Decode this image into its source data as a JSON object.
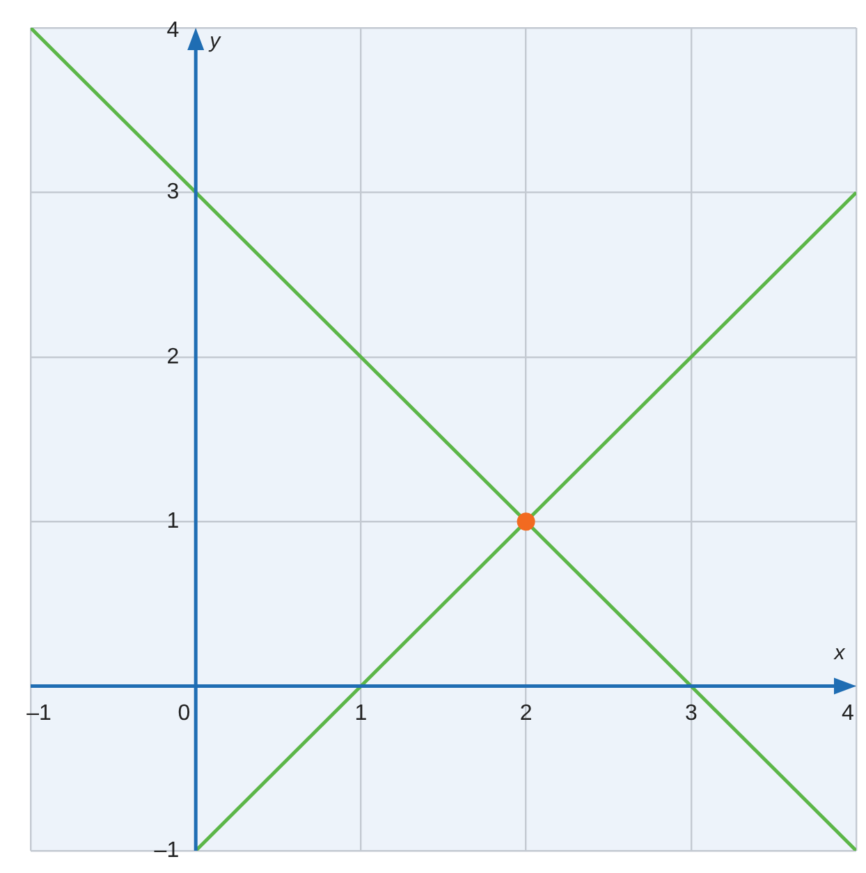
{
  "chart_data": {
    "type": "line",
    "xlabel": "x",
    "ylabel": "y",
    "xlim": [
      -1,
      4
    ],
    "ylim": [
      -1,
      4
    ],
    "xticks": [
      {
        "value": -1,
        "label": "–1"
      },
      0,
      1,
      2,
      3,
      4
    ],
    "yticks": [
      {
        "value": -1,
        "label": "–1"
      },
      {
        "value": 0,
        "label": null
      },
      1,
      2,
      3,
      4
    ],
    "grid": true,
    "legend": false,
    "series": [
      {
        "type": "line",
        "color": "#5cb648",
        "x": [
          -1,
          4
        ],
        "values": [
          4,
          -1
        ],
        "marker": "none"
      },
      {
        "type": "line",
        "color": "#5cb648",
        "x": [
          0,
          4
        ],
        "values": [
          -1,
          3
        ],
        "marker": "none"
      },
      {
        "type": "scatter",
        "color": "#f26a21",
        "x": [
          2
        ],
        "values": [
          1
        ],
        "marker": "circle"
      }
    ]
  }
}
